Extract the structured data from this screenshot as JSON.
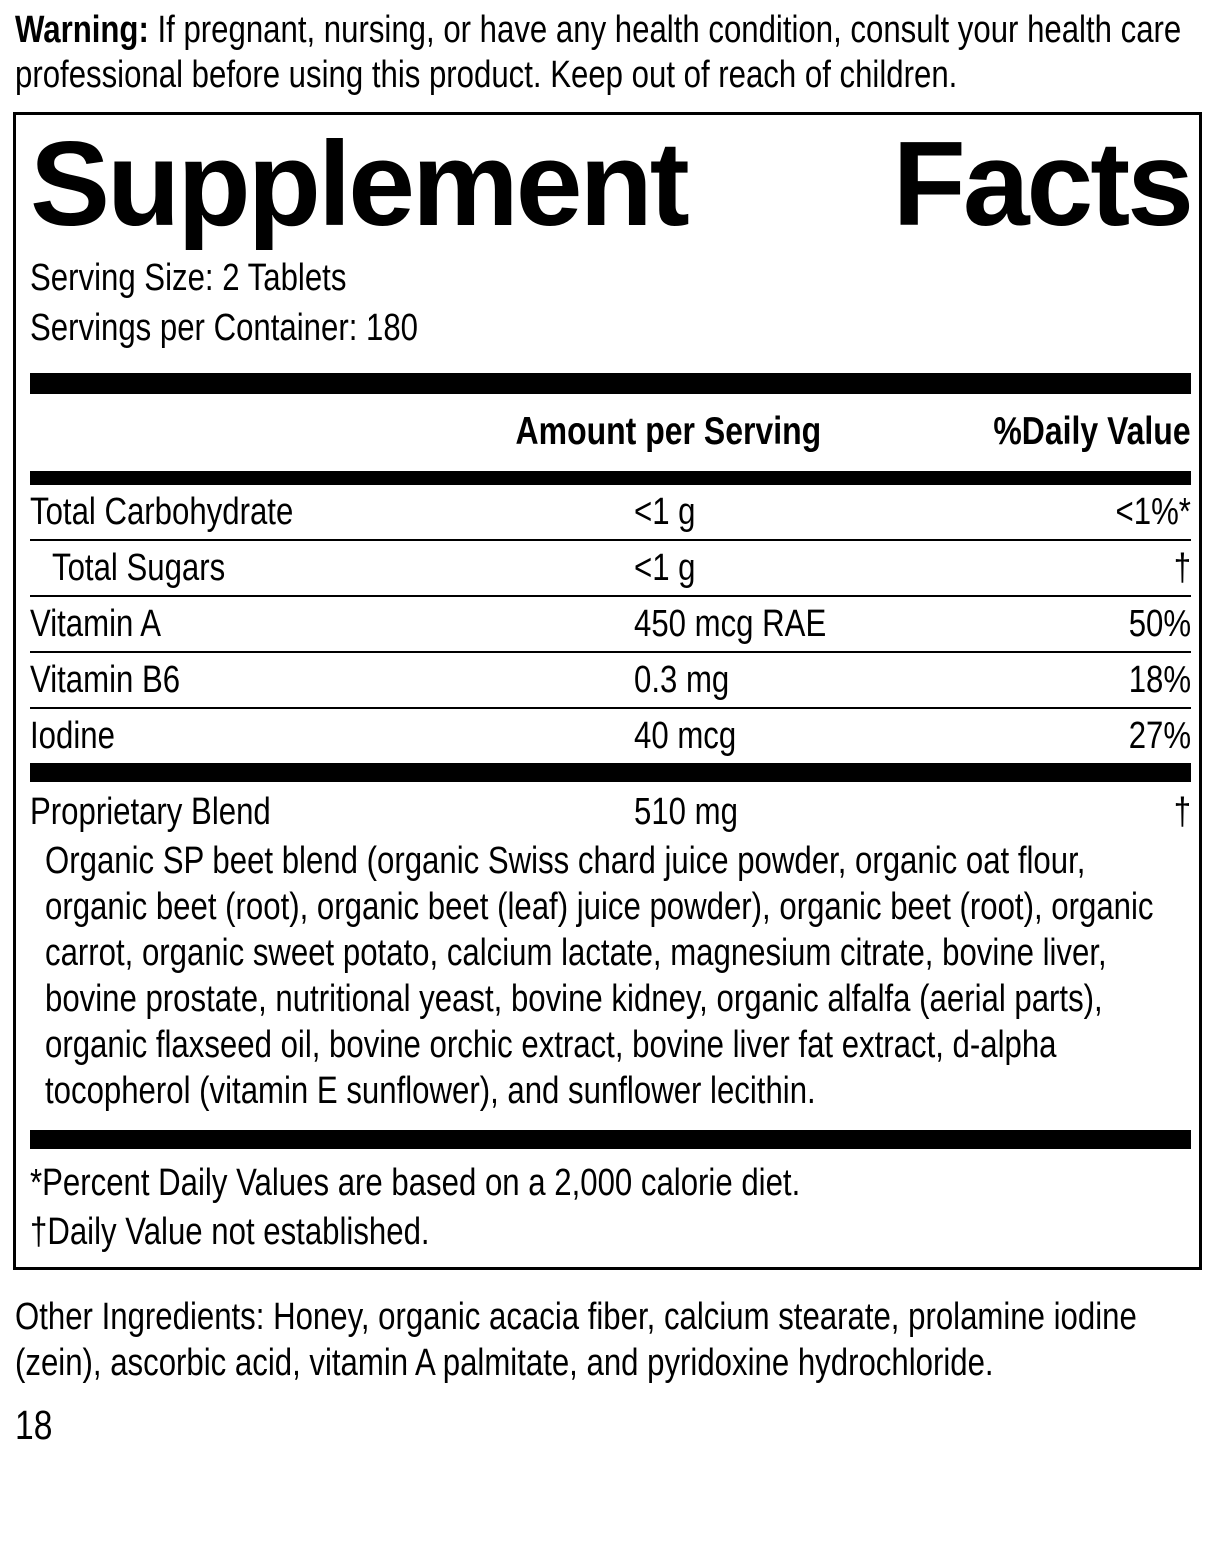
{
  "colors": {
    "ink": "#000000",
    "background": "#ffffff"
  },
  "warning": {
    "label": "Warning:",
    "text": " If pregnant, nursing, or have any health condition, consult your health care professional before using this product. Keep out of reach of children."
  },
  "panel": {
    "title_word_1": "Supplement",
    "title_word_2": "Facts",
    "serving_size": "Serving Size: 2 Tablets",
    "servings_per_container": "Servings per Container: 180",
    "columns": {
      "amount": "Amount per Serving",
      "daily_value": "%Daily Value"
    },
    "rows": [
      {
        "name": "Total Carbohydrate",
        "amount": "<1 g",
        "dv": "<1%*"
      },
      {
        "name": "Total Sugars",
        "amount": "<1 g",
        "dv": "†"
      },
      {
        "name": "Vitamin A",
        "amount": "450 mcg RAE",
        "dv": "50%"
      },
      {
        "name": "Vitamin B6",
        "amount": "0.3 mg",
        "dv": "18%"
      },
      {
        "name": "Iodine",
        "amount": "40 mcg",
        "dv": "27%"
      }
    ],
    "blend": {
      "name": "Proprietary Blend",
      "amount": "510 mg",
      "dv": "†",
      "description": "Organic SP beet blend (organic Swiss chard juice powder, organic oat flour, organic beet (root), organic beet (leaf) juice powder), organic beet (root), organic carrot, organic sweet potato, calcium lactate, magnesium citrate, bovine liver, bovine prostate, nutritional yeast, bovine kidney, organic alfalfa (aerial parts), organic flaxseed oil, bovine orchic extract, bovine liver fat extract, d-alpha tocopherol (vitamin E sunflower), and sunflower lecithin."
    },
    "footnotes": [
      "*Percent Daily Values are based on a 2,000 calorie diet.",
      "†Daily Value not established."
    ]
  },
  "other_ingredients": "Other Ingredients: Honey, organic acacia fiber, calcium stearate, prolamine iodine (zein), ascorbic acid, vitamin A palmitate, and pyridoxine hydrochloride.",
  "page_number": "18"
}
